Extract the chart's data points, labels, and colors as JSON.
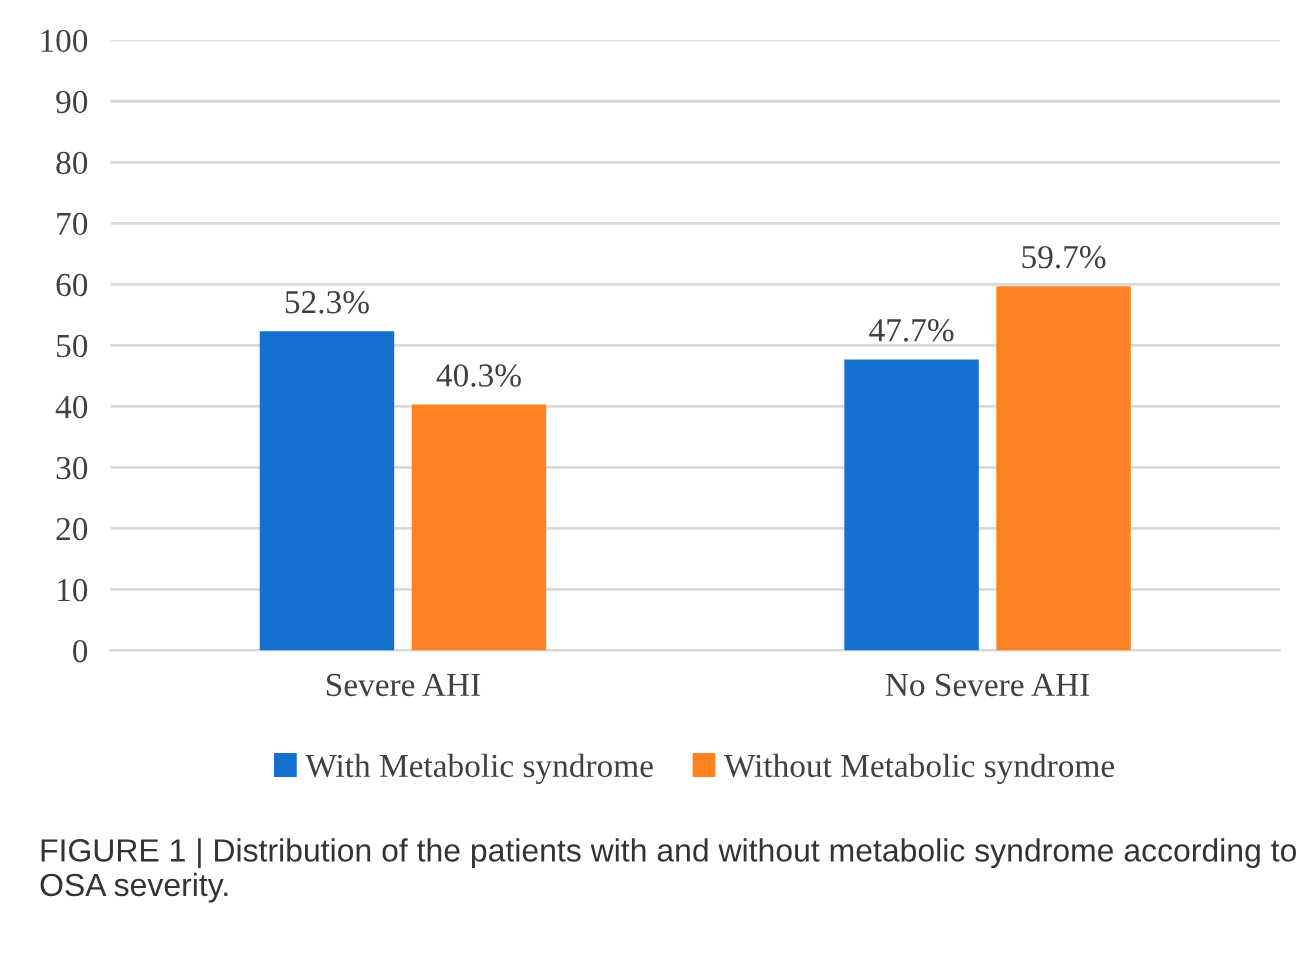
{
  "chart_data": {
    "type": "bar",
    "categories": [
      "Severe AHI",
      "No Severe AHI"
    ],
    "series": [
      {
        "name": "With Metabolic syndrome",
        "color": "#1470cf",
        "values": [
          52.3,
          47.7
        ],
        "value_labels": [
          "52.3%",
          "47.7%"
        ]
      },
      {
        "name": "Without Metabolic syndrome",
        "color": "#fd8123",
        "values": [
          40.3,
          59.7
        ],
        "value_labels": [
          "40.3%",
          "59.7%"
        ]
      }
    ],
    "ylim": [
      0,
      100
    ],
    "yticks": [
      0,
      10,
      20,
      30,
      40,
      50,
      60,
      70,
      80,
      90,
      100
    ],
    "grid": "y",
    "legend": "bottom",
    "annotations": [
      "FIGURE 1 | Distribution of the patients with and without metabolic syndrome according to OSA severity."
    ]
  }
}
